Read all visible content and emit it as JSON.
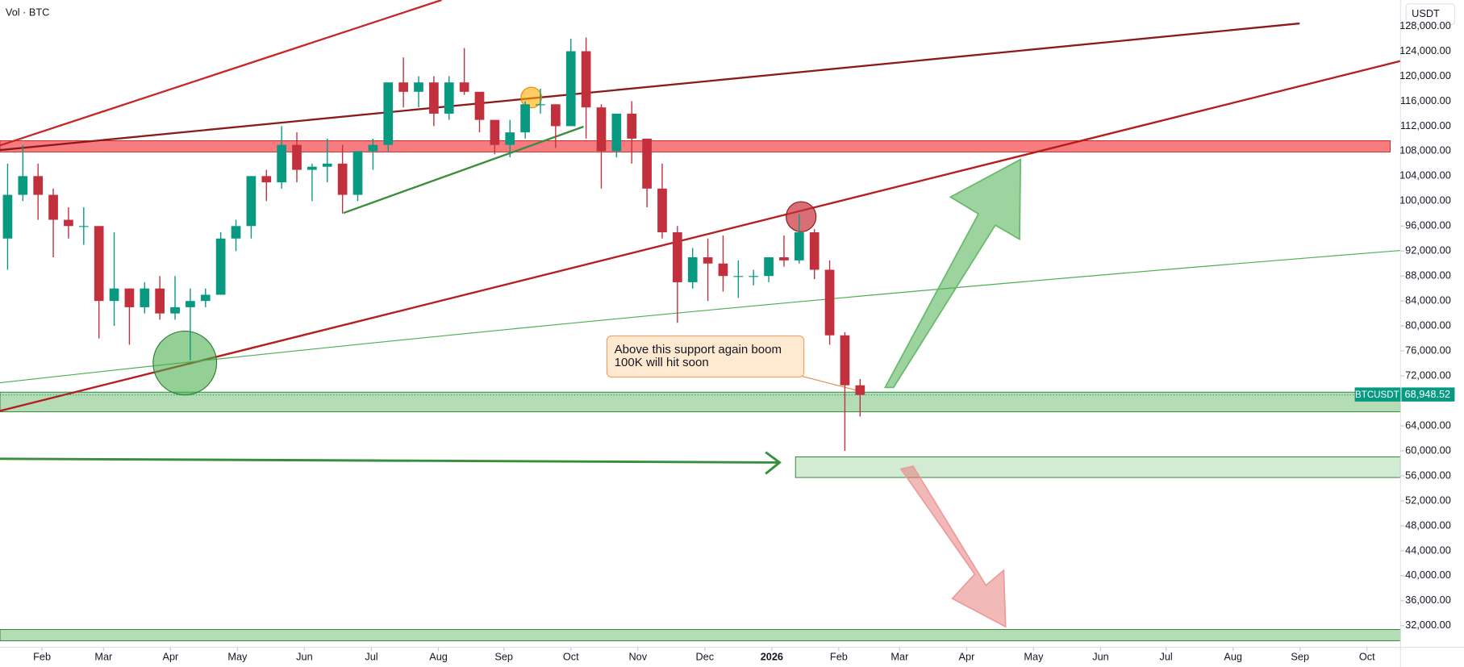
{
  "chart_data": {
    "type": "candlestick",
    "legend_text": "Vol · BTC",
    "currency": "USDT",
    "symbol": "BTCUSDT",
    "last_price": {
      "value": 68948.52,
      "label": "68,948.52"
    },
    "annotation": [
      "Above this support again boom",
      "100K will hit soon"
    ],
    "up_color": "#089981",
    "down_color": "#c2303d",
    "grid": false,
    "x": [
      0.5,
      1.5,
      2.5,
      3.5,
      4.5,
      5.5,
      6.5,
      7.5,
      8.5,
      9.5,
      10.5,
      11.5,
      12.5,
      13.5,
      14.5,
      15.5,
      16.5,
      17.5,
      18.5,
      19.5,
      20.5,
      21.5,
      22.5,
      23.5,
      24.5,
      25.5,
      26.5,
      27.5,
      28.5,
      29.5,
      30.5,
      31.5,
      32.5,
      33.5,
      34.5,
      35.5,
      36.5,
      37.5,
      38.5,
      39.5,
      40.5,
      41.5,
      42.5,
      43.5,
      44.5,
      45.5,
      46.5,
      47.5,
      48.5,
      49.5,
      50.5,
      51.5,
      52.5,
      53.5,
      54.5,
      55.5,
      56.5
    ],
    "open": [
      94000,
      101000,
      104000,
      101000,
      97000,
      96000,
      96000,
      84000,
      86000,
      83000,
      86000,
      82000,
      83000,
      84000,
      85000,
      94000,
      96000,
      104000,
      103000,
      109000,
      105000,
      105500,
      106000,
      101000,
      108000,
      109000,
      119000,
      117500,
      119000,
      114000,
      119000,
      117500,
      113000,
      109000,
      111000,
      115500,
      115500,
      112000,
      124000,
      115000,
      108000,
      114000,
      110000,
      102000,
      95000,
      87000,
      91000,
      90000,
      88000,
      88000,
      88000,
      91000,
      90500,
      95000,
      89000,
      78500,
      70500
    ],
    "high": [
      106000,
      109000,
      106000,
      102000,
      99000,
      99000,
      96000,
      95000,
      86000,
      87000,
      88000,
      88000,
      86000,
      86000,
      95000,
      97000,
      104000,
      105000,
      112000,
      111000,
      106000,
      110000,
      109000,
      108000,
      110000,
      119000,
      123000,
      120000,
      120000,
      120000,
      124500,
      117500,
      113000,
      113000,
      116000,
      118000,
      115500,
      126000,
      126200,
      115500,
      114000,
      116000,
      110000,
      106000,
      96000,
      92500,
      94000,
      94500,
      90500,
      89000,
      91000,
      94500,
      97900,
      95500,
      90500,
      79000,
      71500
    ],
    "low": [
      89000,
      100000,
      97000,
      91000,
      94000,
      93000,
      78000,
      80000,
      77000,
      82000,
      81000,
      81000,
      74500,
      83000,
      85000,
      92000,
      94000,
      100000,
      102000,
      103000,
      100000,
      103000,
      98000,
      100000,
      105000,
      108000,
      115000,
      115000,
      112000,
      113000,
      117000,
      111000,
      107500,
      107000,
      110000,
      114000,
      108500,
      112000,
      110000,
      102000,
      107000,
      106000,
      99000,
      94000,
      80500,
      86000,
      84000,
      85500,
      84500,
      86500,
      87000,
      89500,
      90000,
      87500,
      77000,
      60000,
      65500
    ],
    "close": [
      101000,
      104000,
      101000,
      97000,
      96000,
      96000,
      84000,
      86000,
      83000,
      86000,
      82000,
      83000,
      84000,
      85000,
      94000,
      96000,
      104000,
      103000,
      109000,
      105000,
      105500,
      106000,
      101000,
      108000,
      109000,
      119000,
      117500,
      119000,
      114000,
      119000,
      117500,
      113000,
      109000,
      111000,
      115500,
      115500,
      112000,
      124000,
      115000,
      108000,
      114000,
      110000,
      102000,
      95000,
      87000,
      91000,
      90000,
      88000,
      88000,
      88000,
      91000,
      90500,
      95000,
      89000,
      78500,
      70500,
      68948.52
    ],
    "xlim": [
      0,
      92
    ],
    "xticks": [
      {
        "value": 2.76,
        "label": "Feb"
      },
      {
        "value": 6.8,
        "label": "Mar"
      },
      {
        "value": 11.2,
        "label": "Apr"
      },
      {
        "value": 15.6,
        "label": "May"
      },
      {
        "value": 20.0,
        "label": "Jun"
      },
      {
        "value": 24.4,
        "label": "Jul"
      },
      {
        "value": 28.8,
        "label": "Aug"
      },
      {
        "value": 33.1,
        "label": "Sep"
      },
      {
        "value": 37.5,
        "label": "Oct"
      },
      {
        "value": 41.9,
        "label": "Nov"
      },
      {
        "value": 46.3,
        "label": "Dec"
      },
      {
        "value": 50.7,
        "label": "2026"
      },
      {
        "value": 55.1,
        "label": "Feb"
      },
      {
        "value": 59.1,
        "label": "Mar"
      },
      {
        "value": 63.5,
        "label": "Apr"
      },
      {
        "value": 67.9,
        "label": "May"
      },
      {
        "value": 72.3,
        "label": "Jun"
      },
      {
        "value": 76.6,
        "label": "Jul"
      },
      {
        "value": 81.0,
        "label": "Aug"
      },
      {
        "value": 85.4,
        "label": "Sep"
      },
      {
        "value": 89.8,
        "label": "Oct"
      }
    ],
    "ylim": [
      28540,
      132200
    ],
    "yticks": [
      {
        "value": 32000,
        "label": "32,000.00"
      },
      {
        "value": 36000,
        "label": "36,000.00"
      },
      {
        "value": 40000,
        "label": "40,000.00"
      },
      {
        "value": 44000,
        "label": "44,000.00"
      },
      {
        "value": 48000,
        "label": "48,000.00"
      },
      {
        "value": 52000,
        "label": "52,000.00"
      },
      {
        "value": 56000,
        "label": "56,000.00"
      },
      {
        "value": 60000,
        "label": "60,000.00"
      },
      {
        "value": 64000,
        "label": "64,000.00"
      },
      {
        "value": 72000,
        "label": "72,000.00"
      },
      {
        "value": 76000,
        "label": "76,000.00"
      },
      {
        "value": 80000,
        "label": "80,000.00"
      },
      {
        "value": 84000,
        "label": "84,000.00"
      },
      {
        "value": 88000,
        "label": "88,000.00"
      },
      {
        "value": 92000,
        "label": "92,000.00"
      },
      {
        "value": 96000,
        "label": "96,000.00"
      },
      {
        "value": 100000,
        "label": "100,000.00"
      },
      {
        "value": 104000,
        "label": "104,000.00"
      },
      {
        "value": 108000,
        "label": "108,000.00"
      },
      {
        "value": 112000,
        "label": "112,000.00"
      },
      {
        "value": 116000,
        "label": "116,000.00"
      },
      {
        "value": 120000,
        "label": "120,000.00"
      },
      {
        "value": 124000,
        "label": "124,000.00"
      },
      {
        "value": 128000,
        "label": "128,000.00"
      }
    ]
  }
}
